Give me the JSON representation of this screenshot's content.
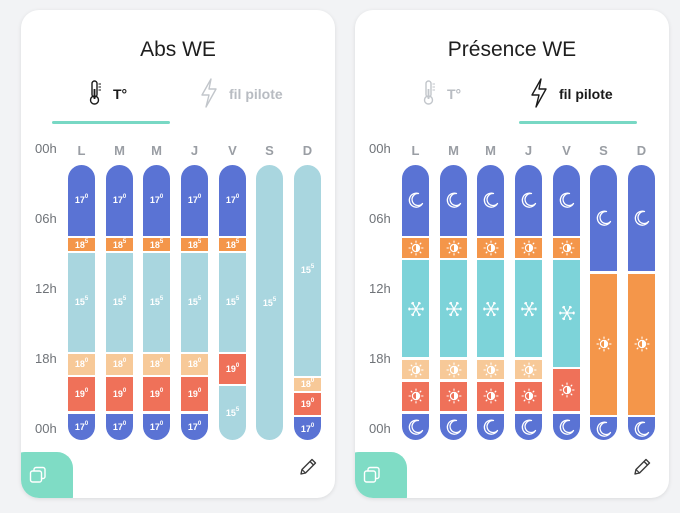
{
  "colors": {
    "night": "#5a73d4",
    "dawn": "#f4964a",
    "frost": "#7dd3d9",
    "light_temp": "#a9d6df",
    "peach": "#f7c998",
    "red": "#ef7159",
    "accent": "#78d8c4",
    "white": "#ffffff"
  },
  "hours": [
    "00h",
    "06h",
    "12h",
    "18h",
    "00h"
  ],
  "days": [
    "L",
    "M",
    "M",
    "J",
    "V",
    "S",
    "D"
  ],
  "panels": [
    {
      "title": "Abs WE",
      "mode": "temperature",
      "tabs": [
        {
          "label": "T°",
          "icon": "thermometer-icon",
          "active": true
        },
        {
          "label": "fil pilote",
          "icon": "lightning-icon",
          "active": false
        }
      ],
      "columns": [
        {
          "segments": [
            {
              "label": "17",
              "sup": "0",
              "color": "night",
              "to": 6.3
            },
            {
              "label": "18",
              "sup": "5",
              "color": "dawn",
              "to": 7.6
            },
            {
              "label": "15",
              "sup": "5",
              "color": "light_temp",
              "to": 16.4
            },
            {
              "label": "18",
              "sup": "0",
              "color": "peach",
              "to": 18.4
            },
            {
              "label": "19",
              "sup": "0",
              "color": "red",
              "to": 21.6
            },
            {
              "label": "17",
              "sup": "0",
              "color": "night",
              "to": 24
            }
          ]
        },
        {
          "segments": [
            {
              "label": "17",
              "sup": "0",
              "color": "night",
              "to": 6.3
            },
            {
              "label": "18",
              "sup": "5",
              "color": "dawn",
              "to": 7.6
            },
            {
              "label": "15",
              "sup": "5",
              "color": "light_temp",
              "to": 16.4
            },
            {
              "label": "18",
              "sup": "0",
              "color": "peach",
              "to": 18.4
            },
            {
              "label": "19",
              "sup": "0",
              "color": "red",
              "to": 21.6
            },
            {
              "label": "17",
              "sup": "0",
              "color": "night",
              "to": 24
            }
          ]
        },
        {
          "segments": [
            {
              "label": "17",
              "sup": "0",
              "color": "night",
              "to": 6.3
            },
            {
              "label": "18",
              "sup": "5",
              "color": "dawn",
              "to": 7.6
            },
            {
              "label": "15",
              "sup": "5",
              "color": "light_temp",
              "to": 16.4
            },
            {
              "label": "18",
              "sup": "0",
              "color": "peach",
              "to": 18.4
            },
            {
              "label": "19",
              "sup": "0",
              "color": "red",
              "to": 21.6
            },
            {
              "label": "17",
              "sup": "0",
              "color": "night",
              "to": 24
            }
          ]
        },
        {
          "segments": [
            {
              "label": "17",
              "sup": "0",
              "color": "night",
              "to": 6.3
            },
            {
              "label": "18",
              "sup": "5",
              "color": "dawn",
              "to": 7.6
            },
            {
              "label": "15",
              "sup": "5",
              "color": "light_temp",
              "to": 16.4
            },
            {
              "label": "18",
              "sup": "0",
              "color": "peach",
              "to": 18.4
            },
            {
              "label": "19",
              "sup": "0",
              "color": "red",
              "to": 21.6
            },
            {
              "label": "17",
              "sup": "0",
              "color": "night",
              "to": 24
            }
          ]
        },
        {
          "segments": [
            {
              "label": "17",
              "sup": "0",
              "color": "night",
              "to": 6.3
            },
            {
              "label": "18",
              "sup": "5",
              "color": "dawn",
              "to": 7.6
            },
            {
              "label": "15",
              "sup": "5",
              "color": "light_temp",
              "to": 16.4
            },
            {
              "label": "19",
              "sup": "0",
              "color": "red",
              "to": 19.2
            },
            {
              "label": "15",
              "sup": "5",
              "color": "light_temp",
              "to": 24
            }
          ]
        },
        {
          "segments": [
            {
              "label": "15",
              "sup": "5",
              "color": "light_temp",
              "to": 24
            }
          ]
        },
        {
          "segments": [
            {
              "label": "15",
              "sup": "5",
              "color": "light_temp",
              "to": 18.5
            },
            {
              "label": "18",
              "sup": "0",
              "color": "peach",
              "to": 19.8
            },
            {
              "label": "19",
              "sup": "0",
              "color": "red",
              "to": 21.9
            },
            {
              "label": "17",
              "sup": "0",
              "color": "night",
              "to": 24
            }
          ]
        }
      ]
    },
    {
      "title": "Présence WE",
      "mode": "pilot",
      "tabs": [
        {
          "label": "T°",
          "icon": "thermometer-icon",
          "active": false
        },
        {
          "label": "fil pilote",
          "icon": "lightning-icon",
          "active": true
        }
      ],
      "columns": [
        {
          "segments": [
            {
              "icon": "moon-icon",
              "color": "night",
              "to": 6.3
            },
            {
              "icon": "sun-icon",
              "color": "dawn",
              "to": 8.2
            },
            {
              "icon": "snowflake-icon",
              "color": "frost",
              "to": 16.9
            },
            {
              "icon": "sun-icon",
              "color": "peach",
              "to": 18.8
            },
            {
              "icon": "sun-icon",
              "color": "red",
              "to": 21.6
            },
            {
              "icon": "moon-icon",
              "color": "night",
              "to": 24
            }
          ]
        },
        {
          "segments": [
            {
              "icon": "moon-icon",
              "color": "night",
              "to": 6.3
            },
            {
              "icon": "sun-icon",
              "color": "dawn",
              "to": 8.2
            },
            {
              "icon": "snowflake-icon",
              "color": "frost",
              "to": 16.9
            },
            {
              "icon": "sun-icon",
              "color": "peach",
              "to": 18.8
            },
            {
              "icon": "sun-icon",
              "color": "red",
              "to": 21.6
            },
            {
              "icon": "moon-icon",
              "color": "night",
              "to": 24
            }
          ]
        },
        {
          "segments": [
            {
              "icon": "moon-icon",
              "color": "night",
              "to": 6.3
            },
            {
              "icon": "sun-icon",
              "color": "dawn",
              "to": 8.2
            },
            {
              "icon": "snowflake-icon",
              "color": "frost",
              "to": 16.9
            },
            {
              "icon": "sun-icon",
              "color": "peach",
              "to": 18.8
            },
            {
              "icon": "sun-icon",
              "color": "red",
              "to": 21.6
            },
            {
              "icon": "moon-icon",
              "color": "night",
              "to": 24
            }
          ]
        },
        {
          "segments": [
            {
              "icon": "moon-icon",
              "color": "night",
              "to": 6.3
            },
            {
              "icon": "sun-icon",
              "color": "dawn",
              "to": 8.2
            },
            {
              "icon": "snowflake-icon",
              "color": "frost",
              "to": 16.9
            },
            {
              "icon": "sun-icon",
              "color": "peach",
              "to": 18.8
            },
            {
              "icon": "sun-icon",
              "color": "red",
              "to": 21.6
            },
            {
              "icon": "moon-icon",
              "color": "night",
              "to": 24
            }
          ]
        },
        {
          "segments": [
            {
              "icon": "moon-icon",
              "color": "night",
              "to": 6.3
            },
            {
              "icon": "sun-icon",
              "color": "dawn",
              "to": 8.2
            },
            {
              "icon": "snowflake-icon",
              "color": "frost",
              "to": 17.7
            },
            {
              "icon": "sun-icon",
              "color": "red",
              "to": 21.6
            },
            {
              "icon": "moon-icon",
              "color": "night",
              "to": 24
            }
          ]
        },
        {
          "segments": [
            {
              "icon": "moon-icon",
              "color": "night",
              "to": 9.4
            },
            {
              "icon": "sun-icon",
              "color": "dawn",
              "to": 21.9
            },
            {
              "icon": "moon-icon",
              "color": "night",
              "to": 24
            }
          ]
        },
        {
          "segments": [
            {
              "icon": "moon-icon",
              "color": "night",
              "to": 9.4
            },
            {
              "icon": "sun-icon",
              "color": "dawn",
              "to": 21.9
            },
            {
              "icon": "moon-icon",
              "color": "night",
              "to": 24
            }
          ]
        }
      ]
    }
  ],
  "actions": {
    "duplicate_icon": "copy-icon",
    "edit_icon": "pencil-icon"
  }
}
